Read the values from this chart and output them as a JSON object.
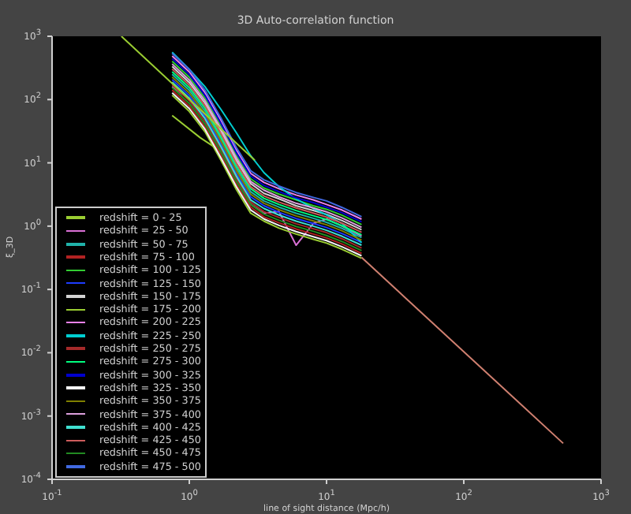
{
  "chart_data": {
    "type": "line",
    "title": "3D Auto-correlation function",
    "xlabel": "line of sight distance (Mpc/h)",
    "ylabel": "ξ_3D",
    "log": "xy",
    "grid": false,
    "legend": "bottom left",
    "marker": "none",
    "line_style": "solid",
    "xlim": [
      0.1,
      1000
    ],
    "ylim": [
      0.0001,
      1000
    ],
    "xticks": [
      {
        "value": 0.1,
        "label": "10$^{-1}$"
      },
      {
        "value": 1,
        "label": "10$^{0}$"
      },
      {
        "value": 10,
        "label": "10$^{1}$"
      },
      {
        "value": 100,
        "label": "10$^{2}$"
      },
      {
        "value": 1000,
        "label": "10$^{3}$"
      }
    ],
    "yticks": [
      {
        "value": 0.0001,
        "label": "10$^{-4}$"
      },
      {
        "value": 0.001,
        "label": "10$^{-3}$"
      },
      {
        "value": 0.01,
        "label": "10$^{-2}$"
      },
      {
        "value": 0.1,
        "label": "10$^{-1}$"
      },
      {
        "value": 1,
        "label": "10$^{0}$"
      },
      {
        "value": 10,
        "label": "10$^{1}$"
      },
      {
        "value": 100,
        "label": "10$^{2}$"
      },
      {
        "value": 1000,
        "label": "10$^{3}$"
      }
    ],
    "x": [
      0.75,
      1,
      1.3,
      1.7,
      2.2,
      2.8,
      3.5,
      4.5,
      6,
      8,
      10,
      13,
      18
    ],
    "series": [
      {
        "name": "redshift = 0 - 25",
        "color": "#9acd32",
        "x": [
          0.75,
          1.2,
          1.8,
          2.27
        ],
        "values": [
          56,
          25,
          14,
          5.4
        ]
      },
      {
        "name": "redshift = 25 - 50",
        "color": "#da70d6",
        "values": [
          160,
          100,
          55,
          22,
          6,
          2.2,
          1.6,
          1.7,
          0.5,
          1.1,
          1.3,
          1.0,
          0.7
        ]
      },
      {
        "name": "redshift = 50 - 75",
        "color": "#20b2aa",
        "values": [
          250,
          140,
          66,
          24,
          8.2,
          3.5,
          2.5,
          2.0,
          1.6,
          1.33,
          1.15,
          0.92,
          0.66
        ]
      },
      {
        "name": "redshift = 75 - 100",
        "color": "#b22222",
        "values": [
          141,
          79,
          37,
          13.5,
          4.6,
          2.0,
          1.4,
          1.13,
          0.9,
          0.75,
          0.65,
          0.52,
          0.37
        ]
      },
      {
        "name": "redshift = 100 - 125",
        "color": "#32cd32",
        "values": [
          403,
          225,
          106,
          39,
          13.2,
          5.6,
          4.0,
          3.2,
          2.6,
          2.1,
          1.85,
          1.48,
          1.06
        ]
      },
      {
        "name": "redshift = 125 - 150",
        "color": "#1e3cff",
        "values": [
          207,
          116,
          55,
          20,
          6.8,
          2.9,
          2.1,
          1.65,
          1.32,
          1.1,
          0.95,
          0.76,
          0.55
        ]
      },
      {
        "name": "redshift = 150 - 175",
        "color": "#d3d3d3",
        "values": [
          333,
          186,
          88,
          32,
          10.9,
          4.7,
          3.3,
          2.7,
          2.1,
          1.77,
          1.53,
          1.22,
          0.88
        ]
      },
      {
        "name": "redshift = 175 - 200",
        "color": "#9acd32",
        "values": [
          117,
          65,
          31,
          11,
          3.8,
          1.6,
          1.2,
          0.93,
          0.75,
          0.62,
          0.54,
          0.43,
          0.31
        ]
      },
      {
        "name": "redshift = 200 - 225",
        "color": "#ee82ee",
        "values": [
          488,
          273,
          129,
          47,
          16,
          6.8,
          4.9,
          3.9,
          3.1,
          2.6,
          2.2,
          1.79,
          1.29
        ]
      },
      {
        "name": "redshift = 225 - 250",
        "color": "#00ced1",
        "values": [
          560,
          300,
          160,
          70,
          30,
          13,
          7,
          4.2,
          2.7,
          1.9,
          1.5,
          1.1,
          0.55
        ]
      },
      {
        "name": "redshift = 250 - 275",
        "color": "#a52a2a",
        "values": [
          171,
          96,
          45,
          16.4,
          5.6,
          2.4,
          1.7,
          1.37,
          1.09,
          0.91,
          0.79,
          0.63,
          0.45
        ]
      },
      {
        "name": "redshift = 275 - 300",
        "color": "#00ff7f",
        "values": [
          275,
          154,
          73,
          26,
          9,
          3.9,
          2.75,
          2.2,
          1.76,
          1.46,
          1.27,
          1.01,
          0.73
        ]
      },
      {
        "name": "redshift = 300 - 325",
        "color": "#0000cd",
        "values": [
          443,
          248,
          117,
          42,
          14.5,
          6.2,
          4.4,
          3.5,
          2.8,
          2.35,
          2.0,
          1.63,
          1.17
        ]
      },
      {
        "name": "redshift = 325 - 350",
        "color": "#f5f5f5",
        "values": [
          128,
          72,
          34,
          12,
          4.2,
          1.8,
          1.3,
          1.03,
          0.82,
          0.68,
          0.59,
          0.47,
          0.34
        ]
      },
      {
        "name": "redshift = 350 - 375",
        "color": "#808000",
        "values": [
          227,
          127,
          60,
          22,
          7.5,
          3.2,
          2.3,
          1.82,
          1.45,
          1.21,
          1.05,
          0.84,
          0.6
        ]
      },
      {
        "name": "redshift = 375 - 400",
        "color": "#dda0dd",
        "values": [
          365,
          204,
          96,
          35,
          12,
          5.1,
          3.7,
          2.9,
          2.3,
          1.94,
          1.68,
          1.34,
          0.96
        ]
      },
      {
        "name": "redshift = 400 - 425",
        "color": "#40e0d0",
        "values": [
          188,
          105,
          50,
          18,
          6.2,
          2.6,
          1.9,
          1.5,
          1.2,
          1.0,
          0.86,
          0.69,
          0.5
        ]
      },
      {
        "name": "redshift = 425 - 450",
        "color": "#cd5c5c",
        "values": [
          303,
          169,
          80,
          29,
          9.9,
          4.2,
          3.0,
          2.4,
          1.94,
          1.61,
          1.39,
          1.11,
          0.8
        ]
      },
      {
        "name": "redshift = 450 - 475",
        "color": "#228b22",
        "values": [
          155,
          87,
          41,
          15,
          5.1,
          2.2,
          1.55,
          1.24,
          0.99,
          0.83,
          0.71,
          0.57,
          0.41
        ]
      },
      {
        "name": "redshift = 475 - 500",
        "color": "#4169e1",
        "values": [
          535,
          300,
          141,
          51,
          17.5,
          7.5,
          5.4,
          4.3,
          3.4,
          2.85,
          2.5,
          1.97,
          1.41
        ]
      },
      {
        "color": "#9acd32",
        "x": [
          0.32,
          3
        ],
        "values": [
          1000,
          11
        ]
      },
      {
        "color": "#d08070",
        "x": [
          18,
          530
        ],
        "values": [
          0.32,
          0.00037
        ]
      }
    ]
  }
}
